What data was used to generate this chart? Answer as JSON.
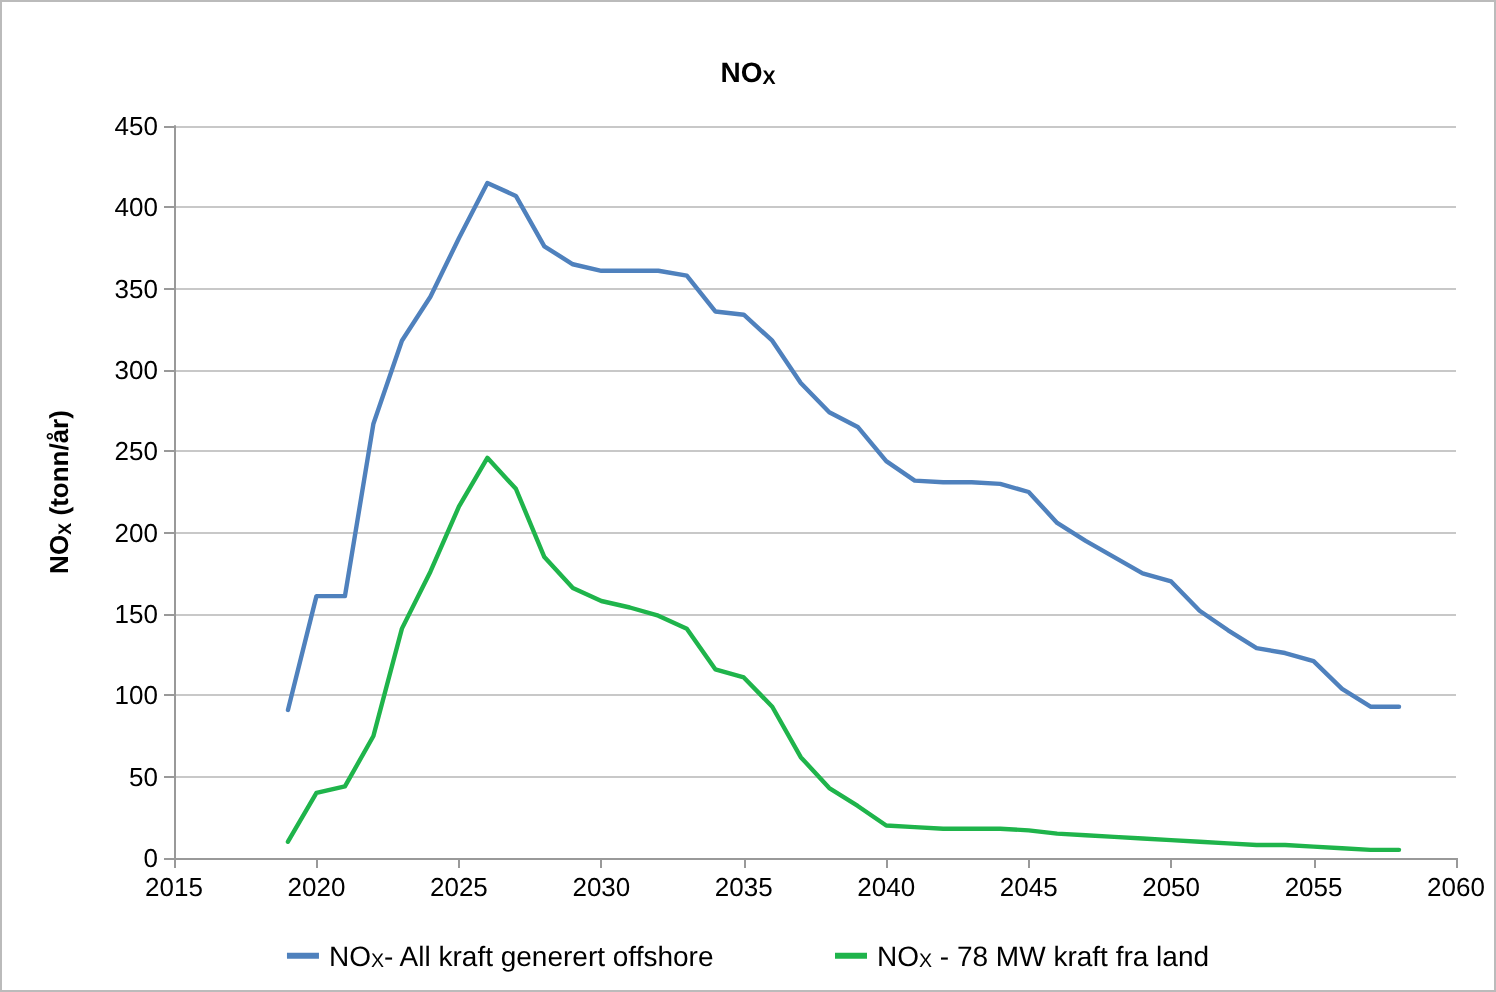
{
  "chart_data": {
    "type": "line",
    "title": "NO$_{X}$",
    "ylabel": "NO$_{X}$ (tonn/år)",
    "x": [
      2019,
      2020,
      2021,
      2022,
      2023,
      2024,
      2025,
      2026,
      2027,
      2028,
      2029,
      2030,
      2031,
      2032,
      2033,
      2034,
      2035,
      2036,
      2037,
      2038,
      2039,
      2040,
      2041,
      2042,
      2043,
      2044,
      2045,
      2046,
      2047,
      2048,
      2049,
      2050,
      2051,
      2052,
      2053,
      2054,
      2055,
      2056,
      2057,
      2058
    ],
    "series": [
      {
        "name": "NO$_{X}$- All kraft generert offshore",
        "color": "#4f81bd",
        "values": [
          91,
          161,
          161,
          267,
          318,
          345,
          381,
          415,
          407,
          376,
          365,
          361,
          361,
          361,
          358,
          336,
          334,
          318,
          292,
          274,
          265,
          244,
          232,
          231,
          231,
          230,
          225,
          206,
          195,
          185,
          175,
          170,
          152,
          140,
          129,
          126,
          121,
          104,
          93,
          93
        ]
      },
      {
        "name": "NO$_{X}$ - 78 MW kraft fra land",
        "color": "#1fb44b",
        "values": [
          10,
          40,
          44,
          75,
          141,
          176,
          216,
          246,
          227,
          185,
          166,
          158,
          154,
          149,
          141,
          116,
          111,
          93,
          62,
          43,
          32,
          20,
          19,
          18,
          18,
          18,
          17,
          15,
          14,
          13,
          12,
          11,
          10,
          9,
          8,
          8,
          7,
          6,
          5,
          5
        ]
      }
    ],
    "xlim": [
      2015,
      2060
    ],
    "xticks": [
      2015,
      2020,
      2025,
      2030,
      2035,
      2040,
      2045,
      2050,
      2055,
      2060
    ],
    "ylim": [
      0,
      450
    ],
    "yticks": [
      0,
      50,
      100,
      150,
      200,
      250,
      300,
      350,
      400,
      450
    ],
    "grid": "y",
    "legend": "bottom",
    "marker": "none",
    "line_style": "solid"
  }
}
